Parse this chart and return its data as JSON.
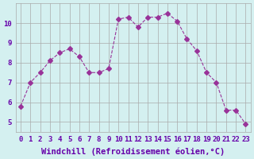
{
  "x": [
    0,
    1,
    2,
    3,
    4,
    5,
    6,
    7,
    8,
    9,
    10,
    11,
    12,
    13,
    14,
    15,
    16,
    17,
    18,
    19,
    20,
    21,
    22,
    23
  ],
  "y": [
    5.8,
    7.0,
    7.5,
    8.1,
    8.5,
    8.7,
    8.3,
    7.5,
    7.5,
    7.7,
    10.2,
    10.3,
    9.8,
    10.3,
    10.3,
    10.5,
    10.1,
    9.2,
    8.6,
    7.5,
    7.0,
    5.6,
    5.6,
    4.9
  ],
  "line_color": "#993399",
  "marker": "D",
  "marker_size": 3,
  "bg_color": "#d4f0f0",
  "grid_color": "#aaaaaa",
  "xlabel": "Windchill (Refroidissement éolien,°C)",
  "xlim": [
    -0.5,
    23.5
  ],
  "ylim": [
    4.5,
    11.0
  ],
  "yticks": [
    5,
    6,
    7,
    8,
    9,
    10
  ],
  "xticks": [
    0,
    1,
    2,
    3,
    4,
    5,
    6,
    7,
    8,
    9,
    10,
    11,
    12,
    13,
    14,
    15,
    16,
    17,
    18,
    19,
    20,
    21,
    22,
    23
  ],
  "tick_label_fontsize": 6.5,
  "xlabel_fontsize": 7.5,
  "line_width": 0.8,
  "xlabel_color": "#6600aa",
  "tick_color": "#6600aa"
}
